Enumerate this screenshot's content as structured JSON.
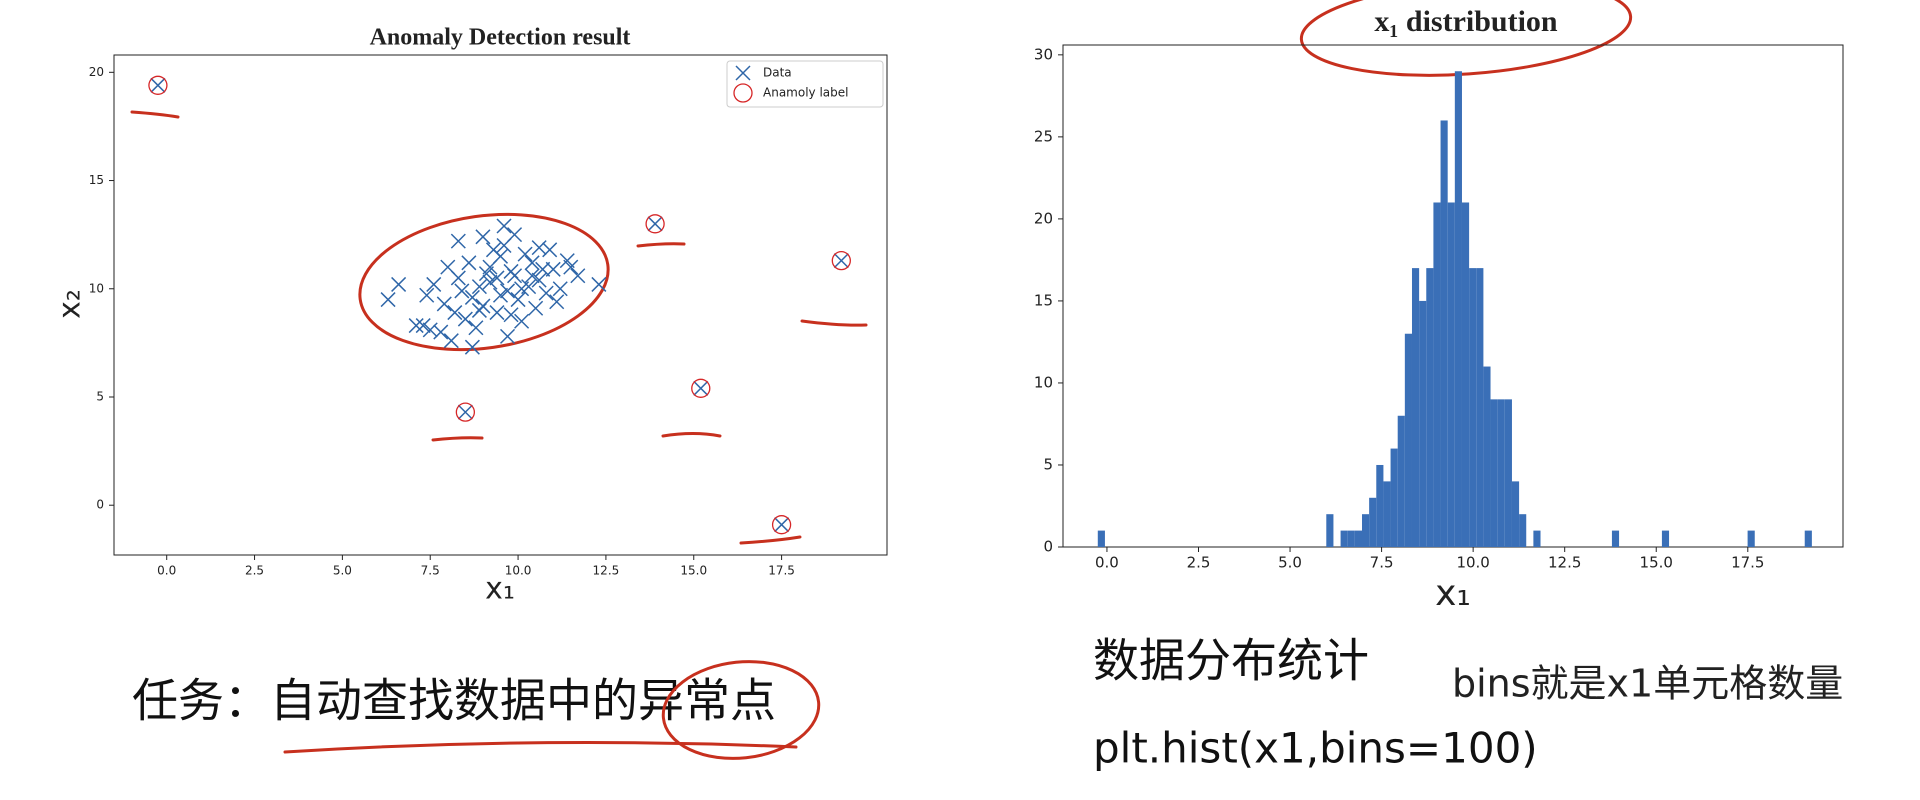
{
  "chart_data": [
    {
      "type": "scatter",
      "title": "Anomaly Detection result",
      "xlabel": "x₁",
      "ylabel": "x₂",
      "xlim": [
        -1.5,
        20.5
      ],
      "ylim": [
        -2.3,
        20.8
      ],
      "xticks": [
        {
          "value": 0,
          "label": "0.0"
        },
        {
          "value": 2.5,
          "label": "2.5"
        },
        {
          "value": 5,
          "label": "5.0"
        },
        {
          "value": 7.5,
          "label": "7.5"
        },
        {
          "value": 10,
          "label": "10.0"
        },
        {
          "value": 12.5,
          "label": "12.5"
        },
        {
          "value": 15,
          "label": "15.0"
        },
        {
          "value": 17.5,
          "label": "17.5"
        }
      ],
      "yticks": [
        0,
        5,
        10,
        15,
        20
      ],
      "grid": false,
      "legend": "upper right",
      "series": [
        {
          "name": "Data",
          "marker": "x",
          "color": "#2f66a8",
          "x": [
            9.2,
            9.8,
            10.4,
            8.7,
            9.5,
            10.1,
            11.0,
            8.3,
            9.0,
            9.7,
            10.6,
            11.4,
            8.0,
            8.9,
            9.4,
            10.0,
            10.8,
            7.6,
            8.5,
            9.3,
            9.9,
            10.5,
            11.2,
            7.9,
            8.6,
            9.1,
            9.6,
            10.2,
            10.9,
            11.7,
            8.2,
            8.8,
            9.5,
            10.3,
            11.1,
            7.4,
            8.4,
            9.2,
            9.8,
            10.7,
            7.1,
            8.1,
            9.0,
            9.9,
            10.6,
            6.6,
            7.8,
            12.3,
            6.3,
            7.5,
            8.7,
            9.4,
            10.1,
            11.5,
            9.6,
            8.3,
            10.4,
            7.3,
            8.9,
            9.7,
            -0.25,
            13.9,
            19.2,
            8.5,
            15.2,
            17.5
          ],
          "y": [
            10.3,
            10.8,
            11.2,
            9.6,
            11.5,
            10.0,
            10.9,
            10.5,
            9.2,
            9.9,
            10.4,
            11.3,
            11.0,
            10.1,
            8.9,
            9.5,
            9.8,
            10.2,
            8.6,
            11.8,
            10.6,
            9.1,
            10.0,
            9.3,
            11.2,
            10.7,
            12.0,
            11.6,
            11.8,
            10.6,
            8.9,
            8.2,
            9.7,
            10.1,
            9.4,
            9.7,
            9.9,
            11.0,
            8.8,
            10.9,
            8.3,
            7.6,
            12.4,
            12.5,
            11.9,
            10.2,
            8.0,
            10.2,
            9.5,
            8.1,
            7.3,
            10.5,
            8.5,
            11.0,
            12.9,
            12.2,
            10.6,
            8.3,
            9.0,
            7.8,
            19.4,
            13.0,
            11.3,
            4.3,
            5.4,
            -0.9
          ]
        },
        {
          "name": "Anamoly label",
          "marker": "o",
          "color": "#d62728",
          "x": [
            -0.25,
            13.9,
            19.2,
            8.5,
            15.2,
            17.5
          ],
          "y": [
            19.4,
            13.0,
            11.3,
            4.3,
            5.4,
            -0.9
          ]
        }
      ]
    },
    {
      "type": "histogram",
      "title": "x₁ distribution",
      "xlabel": "x₁",
      "color": "#3a6fb7",
      "xlim": [
        -1.2,
        20.1
      ],
      "ylim": [
        0,
        30.6
      ],
      "xticks": [
        {
          "value": 0,
          "label": "0.0"
        },
        {
          "value": 2.5,
          "label": "2.5"
        },
        {
          "value": 5,
          "label": "5.0"
        },
        {
          "value": 7.5,
          "label": "7.5"
        },
        {
          "value": 10,
          "label": "10.0"
        },
        {
          "value": 12.5,
          "label": "12.5"
        },
        {
          "value": 15,
          "label": "15.0"
        },
        {
          "value": 17.5,
          "label": "17.5"
        }
      ],
      "yticks": [
        0,
        5,
        10,
        15,
        20,
        25,
        30
      ],
      "grid": false,
      "bins": [
        -0.25,
        -0.055,
        0.14,
        0.335,
        0.53,
        0.725,
        0.92,
        1.115,
        1.31,
        1.505,
        1.7,
        1.895,
        2.09,
        2.285,
        2.48,
        2.675,
        2.87,
        3.065,
        3.26,
        3.455,
        3.65,
        3.845,
        4.04,
        4.235,
        4.43,
        4.625,
        4.82,
        5.015,
        5.21,
        5.405,
        5.6,
        5.795,
        5.99,
        6.185,
        6.38,
        6.575,
        6.77,
        6.965,
        7.16,
        7.355,
        7.55,
        7.745,
        7.94,
        8.135,
        8.33,
        8.525,
        8.72,
        8.915,
        9.11,
        9.305,
        9.5,
        9.695,
        9.89,
        10.085,
        10.28,
        10.475,
        10.67,
        10.865,
        11.06,
        11.255,
        11.45,
        11.645,
        11.84,
        12.035,
        12.23,
        12.425,
        12.62,
        12.815,
        13.01,
        13.205,
        13.4,
        13.595,
        13.79,
        13.985,
        14.18,
        14.375,
        14.57,
        14.765,
        14.96,
        15.155,
        15.35,
        15.545,
        15.74,
        15.935,
        16.13,
        16.325,
        16.52,
        16.715,
        16.91,
        17.105,
        17.3,
        17.495,
        17.69,
        17.885,
        18.08,
        18.275,
        18.47,
        18.665,
        18.86,
        19.055,
        19.25
      ],
      "counts": [
        1,
        0,
        0,
        0,
        0,
        0,
        0,
        0,
        0,
        0,
        0,
        0,
        0,
        0,
        0,
        0,
        0,
        0,
        0,
        0,
        0,
        0,
        0,
        0,
        0,
        0,
        0,
        0,
        0,
        0,
        0,
        0,
        2,
        0,
        1,
        1,
        1,
        2,
        3,
        5,
        4,
        6,
        8,
        13,
        17,
        15,
        17,
        21,
        26,
        21,
        29,
        21,
        17,
        17,
        11,
        9,
        9,
        9,
        4,
        2,
        0,
        1,
        0,
        0,
        0,
        0,
        0,
        0,
        0,
        0,
        0,
        0,
        1,
        0,
        0,
        0,
        0,
        0,
        0,
        1,
        0,
        0,
        0,
        0,
        0,
        0,
        0,
        0,
        0,
        0,
        0,
        1,
        0,
        0,
        0,
        0,
        0,
        0,
        0,
        1
      ]
    }
  ],
  "texts": {
    "task": "任务：自动查找数据中的异常点",
    "stats_heading": "数据分布统计",
    "code": "plt.hist(x1,bins=100)",
    "note": "bins就是x1单元格数量",
    "note_color": "#e0201a"
  }
}
